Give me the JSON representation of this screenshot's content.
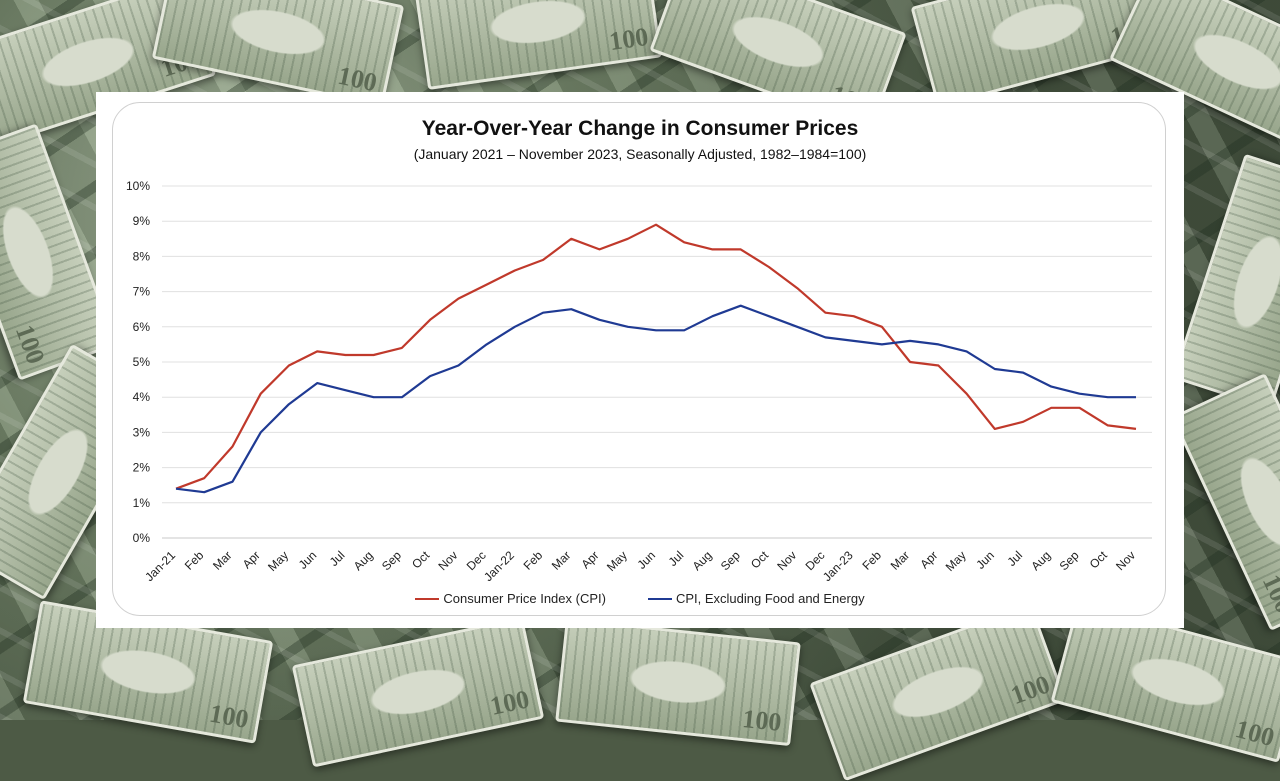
{
  "chart_data": {
    "type": "line",
    "title": "Year-Over-Year Change in Consumer Prices",
    "subtitle": "(January 2021 – November 2023, Seasonally Adjusted, 1982–1984=100)",
    "categories": [
      "Jan-21",
      "Feb",
      "Mar",
      "Apr",
      "May",
      "Jun",
      "Jul",
      "Aug",
      "Sep",
      "Oct",
      "Nov",
      "Dec",
      "Jan-22",
      "Feb",
      "Mar",
      "Apr",
      "May",
      "Jun",
      "Jul",
      "Aug",
      "Sep",
      "Oct",
      "Nov",
      "Dec",
      "Jan-23",
      "Feb",
      "Mar",
      "Apr",
      "May",
      "Jun",
      "Jul",
      "Aug",
      "Sep",
      "Oct",
      "Nov"
    ],
    "ylim": [
      0,
      10
    ],
    "y_ticks": [
      "0%",
      "1%",
      "2%",
      "3%",
      "4%",
      "5%",
      "6%",
      "7%",
      "8%",
      "9%",
      "10%"
    ],
    "grid": true,
    "legend_position": "bottom",
    "series": [
      {
        "name": "Consumer Price Index (CPI)",
        "color": "#c0392b",
        "values": [
          1.4,
          1.7,
          2.6,
          4.1,
          4.9,
          5.3,
          5.2,
          5.2,
          5.4,
          6.2,
          6.8,
          7.2,
          7.6,
          7.9,
          8.5,
          8.2,
          8.5,
          8.9,
          8.4,
          8.2,
          8.2,
          7.7,
          7.1,
          6.4,
          6.3,
          6.0,
          5.0,
          4.9,
          4.1,
          3.1,
          3.3,
          3.7,
          3.7,
          3.2,
          3.1
        ]
      },
      {
        "name": "CPI, Excluding Food and Energy",
        "color": "#1f3a93",
        "values": [
          1.4,
          1.3,
          1.6,
          3.0,
          3.8,
          4.4,
          4.2,
          4.0,
          4.0,
          4.6,
          4.9,
          5.5,
          6.0,
          6.4,
          6.5,
          6.2,
          6.0,
          5.9,
          5.9,
          6.3,
          6.6,
          6.3,
          6.0,
          5.7,
          5.6,
          5.5,
          5.6,
          5.5,
          5.3,
          4.8,
          4.7,
          4.3,
          4.1,
          4.0,
          4.0
        ]
      }
    ]
  }
}
